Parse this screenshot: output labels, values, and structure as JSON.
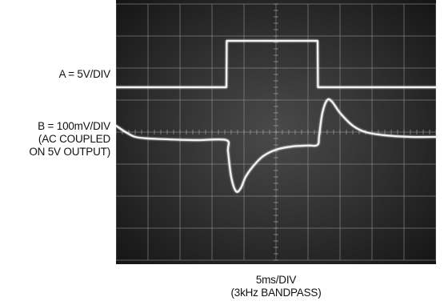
{
  "chart_data": {
    "type": "line",
    "title": "",
    "divisions": {
      "x": 10,
      "y": 8
    },
    "annotations": {
      "channel_a": "A = 5V/DIV",
      "channel_b": [
        "B = 100mV/DIV",
        "(AC COUPLED",
        "ON 5V OUTPUT)"
      ],
      "timebase": [
        "5ms/DIV",
        "(3kHz BANDPASS)"
      ]
    },
    "xlabel": "",
    "ylabel": "",
    "grid": true,
    "series": [
      {
        "x": [
          0,
          3.45,
          3.46,
          6.3,
          6.31,
          10
        ],
        "y": [
          5.4,
          5.4,
          6.85,
          6.85,
          5.4,
          5.4
        ]
      },
      {
        "x": [
          0,
          0.3,
          0.6,
          1.0,
          1.5,
          2.0,
          2.6,
          3.45,
          3.5,
          3.6,
          3.75,
          3.9,
          4.05,
          4.3,
          4.6,
          5.0,
          5.5,
          6.0,
          6.3,
          6.35,
          6.45,
          6.6,
          6.75,
          7.0,
          7.4,
          7.8,
          8.4,
          9.2,
          10
        ],
        "y": [
          4.2,
          4.0,
          3.85,
          3.8,
          3.78,
          3.76,
          3.75,
          3.75,
          3.4,
          2.6,
          2.15,
          2.25,
          2.6,
          2.95,
          3.25,
          3.45,
          3.55,
          3.58,
          3.6,
          3.9,
          4.6,
          5.0,
          4.95,
          4.6,
          4.2,
          4.0,
          3.9,
          3.85,
          3.85
        ]
      }
    ]
  }
}
